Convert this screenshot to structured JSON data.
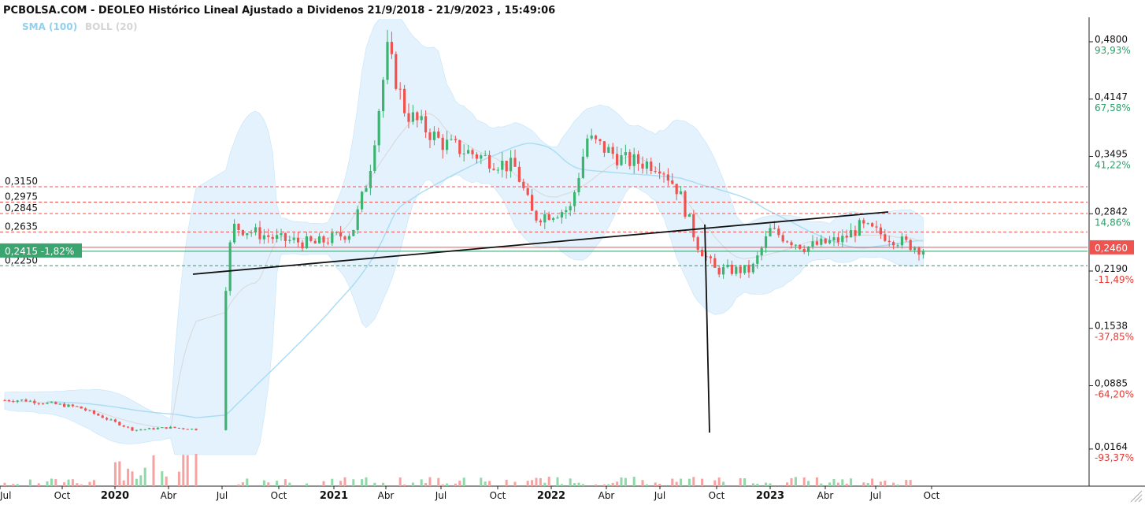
{
  "header": {
    "title": "PCBOLSA.COM - DEOLEO Histórico Lineal Ajustado a Dividenos 21/9/2018 - 21/9/2023 , 15:49:06",
    "legend_sma": "SMA (100)",
    "legend_boll": "BOLL (20)"
  },
  "colors": {
    "up": "#3cb371",
    "down": "#ef5350",
    "band": "#d9eefb",
    "sma": "#a8dcf5",
    "midline": "#d8d8d8",
    "trend": "#111111",
    "red_level": "#ef5350",
    "green_level": "#2e9e6a"
  },
  "chart_data": {
    "type": "candlestick",
    "title": "PCBOLSA.COM - DEOLEO Histórico Lineal Ajustado a Dividenos 21/9/2018 - 21/9/2023 , 15:49:06",
    "x_axis_labels": [
      "Jul",
      "Oct",
      "2020",
      "Abr",
      "Jul",
      "Oct",
      "2021",
      "Abr",
      "Jul",
      "Oct",
      "2022",
      "Abr",
      "Jul",
      "Oct",
      "2023",
      "Abr",
      "Jul",
      "Oct"
    ],
    "y_axis_ticks": [
      {
        "price": "0,4800",
        "pct": "93,93%",
        "dir": "up"
      },
      {
        "price": "0,4147",
        "pct": "67,58%",
        "dir": "up"
      },
      {
        "price": "0,3495",
        "pct": "41,22%",
        "dir": "up"
      },
      {
        "price": "0,2842",
        "pct": "14,86%",
        "dir": "up"
      },
      {
        "price": "0,2190",
        "pct": "-11,49%",
        "dir": "down"
      },
      {
        "price": "0,1538",
        "pct": "-37,85%",
        "dir": "down"
      },
      {
        "price": "0,0885",
        "pct": "-64,20%",
        "dir": "down"
      },
      {
        "price": "0,0164",
        "pct": "-93,37%",
        "dir": "down"
      }
    ],
    "current_price": {
      "label": "0,2460",
      "value": 0.246
    },
    "last_badge": {
      "price": "0,2415",
      "change": "-1,82%",
      "value": 0.2415
    },
    "levels": [
      {
        "label": "0,3150",
        "value": 0.315,
        "style": "red"
      },
      {
        "label": "0,2975",
        "value": 0.2975,
        "style": "red"
      },
      {
        "label": "0,2845",
        "value": 0.2845,
        "style": "red"
      },
      {
        "label": "0,2635",
        "value": 0.2635,
        "style": "red"
      },
      {
        "label": "0,2250",
        "value": 0.225,
        "style": "green"
      }
    ],
    "closes": [
      {
        "date": "2019-08-01",
        "close": 0.072
      },
      {
        "date": "2019-11-01",
        "close": 0.064
      },
      {
        "date": "2020-02-01",
        "close": 0.038
      },
      {
        "date": "2020-04-01",
        "close": 0.041
      },
      {
        "date": "2020-06-01",
        "close": 0.038
      },
      {
        "date": "2020-07-01",
        "close": 0.18
      },
      {
        "date": "2020-07-15",
        "close": 0.27
      },
      {
        "date": "2020-10-01",
        "close": 0.255
      },
      {
        "date": "2020-12-01",
        "close": 0.25
      },
      {
        "date": "2021-02-01",
        "close": 0.264
      },
      {
        "date": "2021-03-01",
        "close": 0.33
      },
      {
        "date": "2021-04-01",
        "close": 0.47
      },
      {
        "date": "2021-05-01",
        "close": 0.4
      },
      {
        "date": "2021-07-01",
        "close": 0.365
      },
      {
        "date": "2021-09-01",
        "close": 0.35
      },
      {
        "date": "2021-11-01",
        "close": 0.336
      },
      {
        "date": "2021-12-01",
        "close": 0.28
      },
      {
        "date": "2022-02-01",
        "close": 0.29
      },
      {
        "date": "2022-03-01",
        "close": 0.37
      },
      {
        "date": "2022-05-01",
        "close": 0.345
      },
      {
        "date": "2022-07-01",
        "close": 0.34
      },
      {
        "date": "2022-08-01",
        "close": 0.31
      },
      {
        "date": "2022-09-01",
        "close": 0.25
      },
      {
        "date": "2022-10-01",
        "close": 0.22
      },
      {
        "date": "2022-12-01",
        "close": 0.22
      },
      {
        "date": "2023-01-01",
        "close": 0.265
      },
      {
        "date": "2023-03-01",
        "close": 0.246
      },
      {
        "date": "2023-05-01",
        "close": 0.255
      },
      {
        "date": "2023-06-01",
        "close": 0.27
      },
      {
        "date": "2023-09-21",
        "close": 0.2415
      }
    ],
    "grid": false,
    "legend_position": "top-left"
  }
}
